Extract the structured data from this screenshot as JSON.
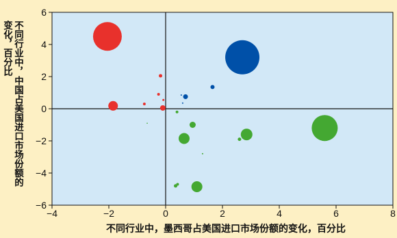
{
  "chart_data": {
    "type": "scatter",
    "title": "",
    "xlabel": "不同行业中，墨西哥占美国进口市场份额的变化，百分比",
    "ylabel": "不同行业中，中国占美国进口市场份额的变化，百分比",
    "xlim": [
      -4,
      8
    ],
    "ylim": [
      -6,
      6
    ],
    "x_ticks": [
      "−4",
      "−2",
      "0",
      "2",
      "4",
      "6",
      "8"
    ],
    "y_ticks": [
      "6",
      "4",
      "2",
      "0",
      "−2",
      "−4",
      "−6"
    ],
    "grid": false,
    "legend": "none",
    "colors": {
      "red": "#e8312c",
      "blue": "#0050a8",
      "green": "#44a832",
      "plot_bg": "#d2e8f7",
      "page_bg": "#fdf0c4"
    },
    "series": [
      {
        "color": "red",
        "points": [
          {
            "x": -2.05,
            "y": 4.5,
            "size": 21
          },
          {
            "x": -1.85,
            "y": 0.18,
            "size": 7
          },
          {
            "x": -0.75,
            "y": 0.3,
            "size": 2
          },
          {
            "x": -0.25,
            "y": 0.9,
            "size": 2
          },
          {
            "x": -0.18,
            "y": 2.05,
            "size": 2.5
          },
          {
            "x": -0.1,
            "y": 0.05,
            "size": 4
          },
          {
            "x": -0.08,
            "y": 0.55,
            "size": 1.5
          }
        ]
      },
      {
        "color": "blue",
        "points": [
          {
            "x": 2.7,
            "y": 3.2,
            "size": 25
          },
          {
            "x": 1.65,
            "y": 1.35,
            "size": 3
          },
          {
            "x": 0.7,
            "y": 0.75,
            "size": 3.5
          },
          {
            "x": 0.55,
            "y": 0.85,
            "size": 1
          },
          {
            "x": 0.6,
            "y": 0.35,
            "size": 1
          }
        ]
      },
      {
        "color": "green",
        "points": [
          {
            "x": 5.6,
            "y": -1.2,
            "size": 19
          },
          {
            "x": 2.85,
            "y": -1.6,
            "size": 8.5
          },
          {
            "x": 2.6,
            "y": -1.9,
            "size": 2.5
          },
          {
            "x": 0.65,
            "y": -1.85,
            "size": 8
          },
          {
            "x": 0.95,
            "y": -1.0,
            "size": 4.5
          },
          {
            "x": 0.4,
            "y": -0.2,
            "size": 2
          },
          {
            "x": 1.1,
            "y": -4.85,
            "size": 8
          },
          {
            "x": 0.35,
            "y": -4.8,
            "size": 2.5
          },
          {
            "x": 0.42,
            "y": -4.7,
            "size": 2
          },
          {
            "x": 1.3,
            "y": -2.8,
            "size": 1
          },
          {
            "x": -0.65,
            "y": -0.9,
            "size": 0.8
          }
        ]
      }
    ]
  }
}
